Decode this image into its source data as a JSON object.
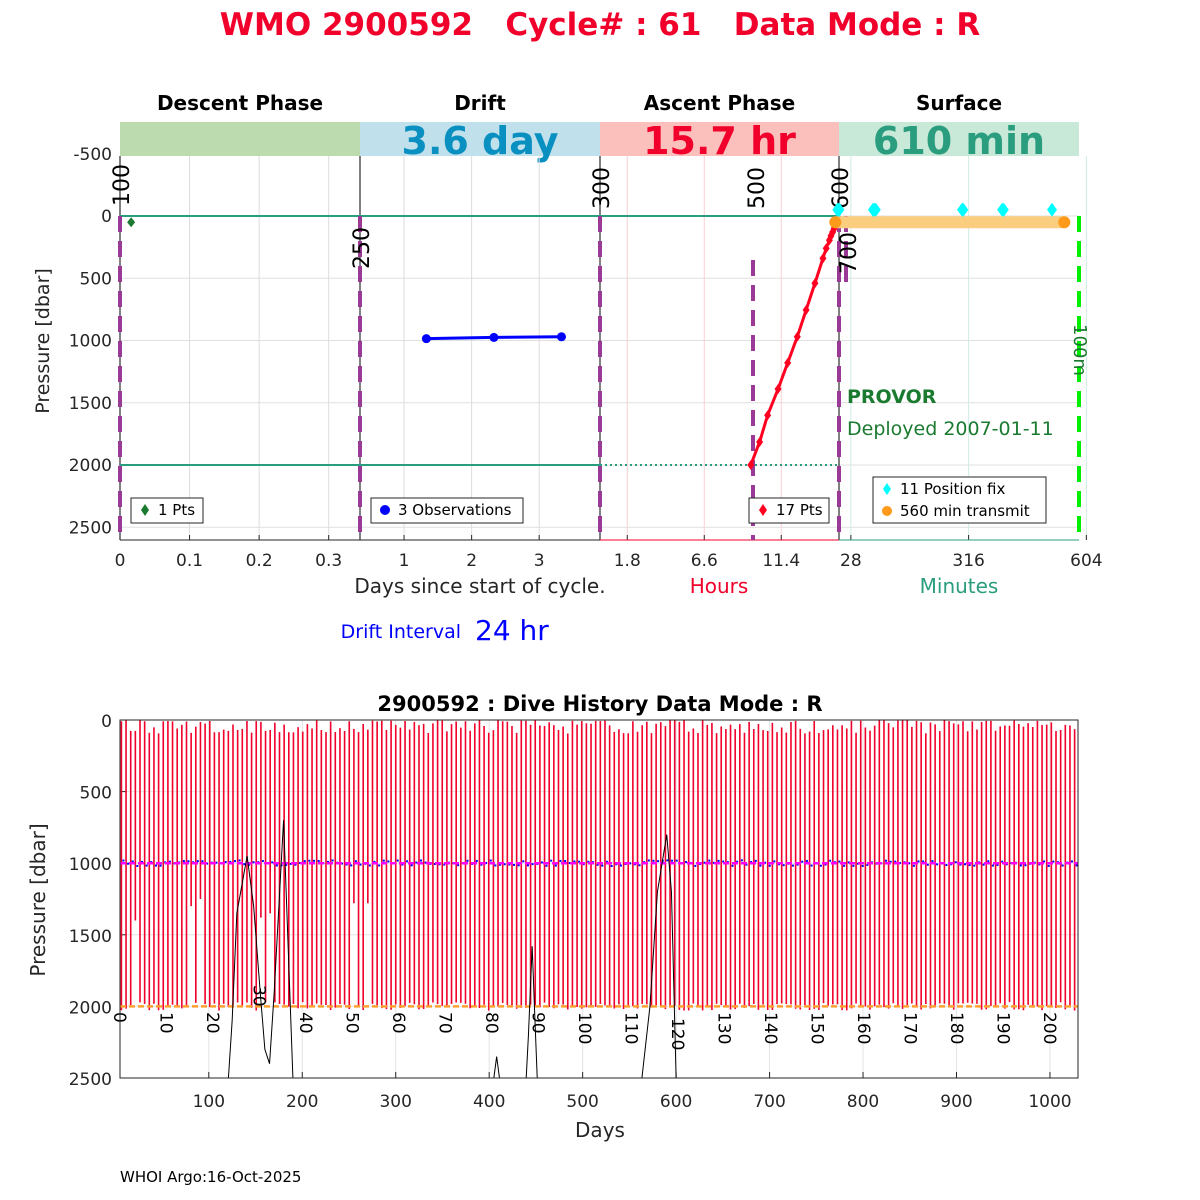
{
  "title": "WMO 2900592   Cycle# : 61   Data Mode : R",
  "footer": "WHOI Argo:16-Oct-2025",
  "colors": {
    "title": "#f0002a",
    "descent": "#1a7a30",
    "drift": "#0000ff",
    "ascent": "#ff0020",
    "fix": "#00ffff",
    "transmit": "#ff9a1a",
    "teal": "#2a9d7e",
    "purple": "#9b3a96",
    "green": "#00ee00"
  },
  "chart_data": [
    {
      "type": "line",
      "name": "cycle-profile",
      "ylabel": "Pressure [dbar]",
      "ylim": [
        -750,
        2600
      ],
      "yticks": [
        "-500",
        "0",
        "500",
        "1000",
        "1500",
        "2000",
        "2500"
      ],
      "ytick_values": [
        -500,
        0,
        500,
        1000,
        1500,
        2000,
        2500
      ],
      "phases": [
        {
          "title": "Descent Phase",
          "duration": "",
          "xticks": [
            "0",
            "0.1",
            "0.2",
            "0.3"
          ],
          "xtick_values": [
            0,
            0.1,
            0.2,
            0.3
          ],
          "xlim": [
            0,
            0.345
          ],
          "legend": "1 Pts",
          "x": [
            0.016
          ],
          "y": [
            50
          ]
        },
        {
          "title": "Drift",
          "duration": "3.6 day",
          "xticks": [
            "1",
            "2",
            "3"
          ],
          "xtick_values": [
            1,
            2,
            3
          ],
          "xlim": [
            0.348,
            3.9
          ],
          "legend": "3 Observations",
          "x": [
            1.33,
            2.33,
            3.33
          ],
          "y": [
            985,
            975,
            970
          ]
        },
        {
          "title": "Ascent Phase",
          "duration": "15.7 hr",
          "xticks": [
            "1.8",
            "6.6",
            "11.4"
          ],
          "xtick_values": [
            1.8,
            6.6,
            11.4
          ],
          "xlim": [
            0.1,
            15.0
          ],
          "legend": "17 Pts",
          "x": [
            9.5,
            10.05,
            10.55,
            11.2,
            11.8,
            12.4,
            12.95,
            13.5,
            14.0,
            14.2,
            14.4,
            14.5,
            14.6,
            14.7,
            14.8,
            14.9,
            14.95
          ],
          "y": [
            2000,
            1815,
            1600,
            1390,
            1180,
            970,
            755,
            540,
            340,
            260,
            195,
            160,
            130,
            100,
            75,
            50,
            35
          ]
        },
        {
          "title": "Surface",
          "duration": "610 min",
          "xticks": [
            "28",
            "316",
            "604"
          ],
          "xtick_values": [
            28,
            316,
            604
          ],
          "xlim": [
            -1,
            586
          ],
          "legend": "11 Position fix",
          "legend2": "560 min transmit",
          "fix_x": [
            -5,
            -3,
            0,
            82,
            85,
            89,
            300,
            303,
            398,
            402,
            520
          ],
          "fix_y": [
            -50,
            -50,
            -50,
            -50,
            -50,
            -50,
            -50,
            -50,
            -50,
            -50,
            -50
          ],
          "transmit_x": [
            -10,
            550
          ],
          "transmit_y": [
            50,
            50
          ],
          "float_type": "PROVOR",
          "deployed": "Deployed 2007-01-11"
        }
      ],
      "xlabel": "Days since start of cycle.",
      "xlabel_hours": "Hours",
      "xlabel_minutes": "Minutes",
      "markers": [
        "100",
        "250",
        "300",
        "500",
        "600",
        "700",
        "100m"
      ],
      "drift_interval_label": "Drift Interval",
      "drift_interval_value": "24 hr",
      "surface_line": 0,
      "park_line": 2000
    },
    {
      "type": "line",
      "name": "dive-history",
      "title": "2900592 : Dive History      Data Mode : R",
      "xlabel": "Days",
      "ylabel": "Pressure [dbar]",
      "xlim": [
        5,
        1030
      ],
      "ylim": [
        0,
        2500
      ],
      "xticks": [
        "100",
        "200",
        "300",
        "400",
        "500",
        "600",
        "700",
        "800",
        "900",
        "1000"
      ],
      "xtick_values": [
        100,
        200,
        300,
        400,
        500,
        600,
        700,
        800,
        900,
        1000
      ],
      "yticks": [
        "0",
        "500",
        "1000",
        "1500",
        "2000",
        "2500"
      ],
      "ytick_values": [
        0,
        500,
        1000,
        1500,
        2000,
        2500
      ],
      "cycle_labels": [
        "0",
        "10",
        "20",
        "30",
        "40",
        "50",
        "60",
        "70",
        "80",
        "90",
        "100",
        "110",
        "120",
        "130",
        "140",
        "150",
        "160",
        "170",
        "180",
        "190",
        "200"
      ],
      "cycle_count": 206,
      "cycle_interval_days": 5,
      "park_pressure": 1000,
      "profile_pressure": 2000,
      "bathymetry_x": [
        5,
        110,
        121,
        125,
        130,
        141,
        148,
        155,
        160,
        165,
        170,
        175,
        180,
        185,
        190,
        200,
        400,
        405,
        408,
        411,
        415,
        438,
        442,
        446,
        449,
        452,
        460,
        560,
        572,
        580,
        590,
        595,
        600,
        610,
        1030
      ],
      "bathymetry_y": [
        2700,
        2700,
        2500,
        2100,
        1350,
        950,
        1300,
        1900,
        2300,
        2400,
        1900,
        1300,
        700,
        1600,
        2500,
        2700,
        2700,
        2500,
        2350,
        2500,
        2700,
        2700,
        2200,
        1580,
        2100,
        2600,
        2700,
        2700,
        2000,
        1200,
        800,
        1200,
        2500,
        2700,
        2700
      ]
    }
  ]
}
